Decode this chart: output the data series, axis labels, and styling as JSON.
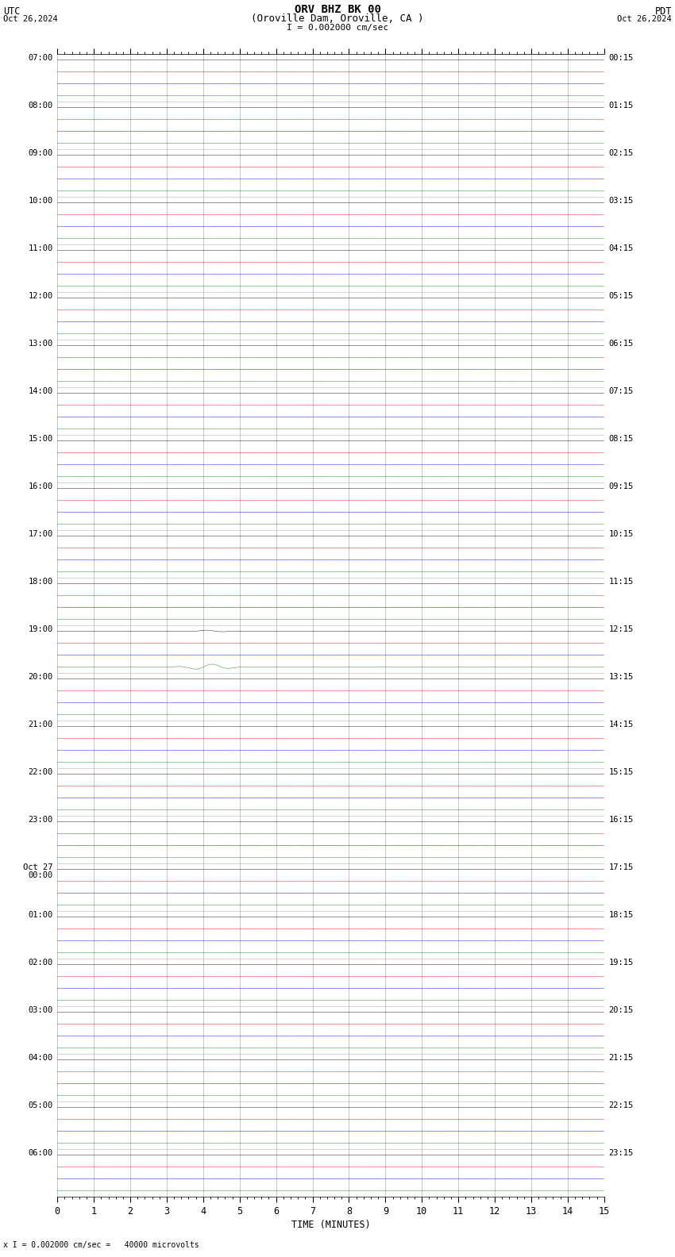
{
  "title_line1": "ORV BHZ BK 00",
  "title_line2": "(Oroville Dam, Oroville, CA )",
  "scale_label": "I = 0.002000 cm/sec",
  "bottom_label": "x I = 0.002000 cm/sec =   40000 microvolts",
  "utc_label": "UTC",
  "pdt_label": "PDT",
  "date_left": "Oct 26,2024",
  "date_right": "Oct 26,2024",
  "xlabel": "TIME (MINUTES)",
  "left_times_utc": [
    "07:00",
    "08:00",
    "09:00",
    "10:00",
    "11:00",
    "12:00",
    "13:00",
    "14:00",
    "15:00",
    "16:00",
    "17:00",
    "18:00",
    "19:00",
    "20:00",
    "21:00",
    "22:00",
    "23:00",
    "Oct 27\n00:00",
    "01:00",
    "02:00",
    "03:00",
    "04:00",
    "05:00",
    "06:00"
  ],
  "right_times_pdt": [
    "00:15",
    "01:15",
    "02:15",
    "03:15",
    "04:15",
    "05:15",
    "06:15",
    "07:15",
    "08:15",
    "09:15",
    "10:15",
    "11:15",
    "12:15",
    "13:15",
    "14:15",
    "15:15",
    "16:15",
    "17:15",
    "18:15",
    "19:15",
    "20:15",
    "21:15",
    "22:15",
    "23:15"
  ],
  "n_rows": 24,
  "minutes_per_row": 15,
  "colors_cycle": [
    "black",
    "red",
    "blue",
    "green"
  ],
  "noise_amplitudes": [
    0.018,
    0.022,
    0.02,
    0.015
  ],
  "event_row": 12,
  "event_minute": 4.15,
  "event_amplitude": 0.55,
  "background_color": "white",
  "grid_color": "#999999",
  "font_name": "monospace",
  "font_size_labels": 7.5,
  "font_size_header": 9.5,
  "font_size_axis": 8.5
}
